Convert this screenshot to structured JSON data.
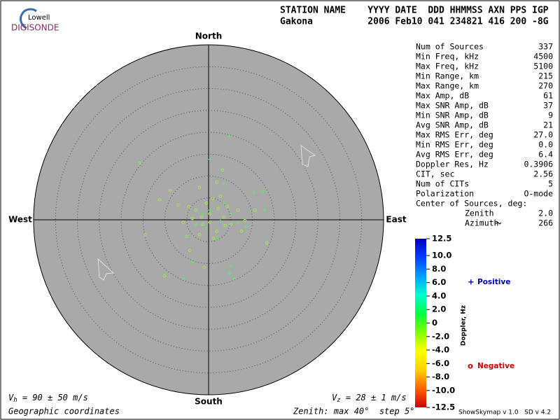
{
  "header": {
    "line1": "STATION NAME    YYYY DATE  DDD HHMMSS AXN PPS IGP",
    "line2": "Gakona          2006 Feb10 041 234821 416 200 -8G"
  },
  "logo": {
    "top": "Lowell",
    "bottom": "DIGISONDE"
  },
  "stats": {
    "rows": [
      {
        "label": "Num of Sources",
        "value": "337"
      },
      {
        "label": "Min Freq, kHz",
        "value": "4500"
      },
      {
        "label": "Max Freq, kHz",
        "value": "5100"
      },
      {
        "label": "Min Range, km",
        "value": "215"
      },
      {
        "label": "Max Range, km",
        "value": "270"
      },
      {
        "label": "Max Amp, dB",
        "value": "61"
      },
      {
        "label": "Max SNR Amp, dB",
        "value": "37"
      },
      {
        "label": "Min SNR Amp, dB",
        "value": "9"
      },
      {
        "label": "Avg SNR Amp, dB",
        "value": "21"
      },
      {
        "label": "Max RMS Err, deg",
        "value": "27.0"
      },
      {
        "label": "Min RMS Err, deg",
        "value": "0.0"
      },
      {
        "label": "Avg RMS Err, deg",
        "value": "6.4"
      },
      {
        "label": "Doppler Res, Hz",
        "value": "0.3906"
      },
      {
        "label": "CIT, sec",
        "value": "2.56"
      },
      {
        "label": "Num of CITs",
        "value": "5"
      },
      {
        "label": "Polarization",
        "value": "O-mode"
      }
    ],
    "center_title": "Center of Sources, deg:",
    "center_rows": [
      {
        "label": "Zenith",
        "value": "2.0"
      },
      {
        "label": "Azimuth",
        "value": "266"
      }
    ]
  },
  "footer": {
    "vh": [
      "V",
      "h",
      " = 90 ± 50 m/s"
    ],
    "vz": [
      "V",
      "z",
      " = 28 ± 1 m/s"
    ],
    "coords": "Geographic coordinates",
    "zenith": "Zenith: max 40°  step 5°",
    "version": "ShowSkymap v 1.0   SD v 4.2"
  },
  "chart_data": {
    "type": "scatter",
    "directions": {
      "north": "North",
      "south": "South",
      "east": "East",
      "west": "West"
    },
    "xlim": [
      -40,
      40
    ],
    "ylim": [
      -40,
      40
    ],
    "rings": [
      5,
      10,
      15,
      20,
      25,
      30,
      35
    ],
    "series": [
      {
        "name": "Negative",
        "marker": "o",
        "color": "#9be84c",
        "legend_color": "#d00000",
        "x": [
          -15.7,
          -8.8,
          -11.2,
          -14.4,
          -5.0,
          -4.3,
          -10.1,
          -1.0,
          13.3,
          10.6,
          1.0,
          -2.1,
          3.2,
          1.9,
          -7.0,
          -2.9,
          0.3,
          3.5,
          5.1,
          -1.3,
          1.9,
          6.7,
          -3.7,
          -0.5,
          4.3,
          8.3,
          1.1,
          -2.1,
          -4.5,
          2.7,
          -5.8,
          7.5,
          0.3,
          2.2,
          3.8,
          -1.6
        ],
        "y": [
          13.0,
          6.7,
          4.6,
          -3.4,
          -3.8,
          -7.0,
          -12.8,
          -10.9,
          -5.3,
          2.2,
          4.8,
          7.4,
          11.4,
          8.6,
          3.4,
          2.2,
          1.4,
          0.6,
          -1.0,
          -1.0,
          -2.6,
          2.2,
          0.3,
          3.8,
          3.0,
          -0.2,
          -4.2,
          -3.4,
          3.0,
          5.4,
          -0.6,
          -2.6,
          -0.6,
          2.6,
          -1.3,
          0.6
        ]
      },
      {
        "name": "Positive",
        "marker": "+",
        "color": "#5fe86a",
        "legend_color": "#0000c0",
        "x": [
          4.8,
          0.3,
          -3.8,
          -5.8,
          5.1,
          4.8,
          5.9,
          12.5,
          10.4,
          12.8,
          3.5,
          0.3,
          2.7,
          -0.5,
          5.1,
          -2.9,
          6.7,
          1.9,
          -1.3,
          3.5,
          8.6
        ],
        "y": [
          19.2,
          13.8,
          -9.6,
          -13.4,
          -10.6,
          -12.2,
          -13.4,
          6.6,
          6.2,
          2.2,
          8.3,
          2.2,
          -0.2,
          -1.8,
          1.4,
          -1.0,
          -0.6,
          -4.2,
          1.4,
          3.8,
          -1.6
        ]
      }
    ],
    "colorbar": {
      "label": "Doppler, Hz",
      "lim": [
        -12.5,
        12.5
      ],
      "colors": [
        "#d00000",
        "#ff6000",
        "#ffd000",
        "#ffff00",
        "#80ff00",
        "#00ff40",
        "#00ffd0",
        "#00a0ff",
        "#0040ff",
        "#0000c0"
      ],
      "ticks": [
        12.5,
        {
          "value": 10,
          "label": "10.0"
        },
        {
          "value": 8,
          "label": "8.0"
        },
        {
          "value": 6,
          "label": "6.0"
        },
        {
          "value": 4,
          "label": "4.0"
        },
        {
          "value": 2,
          "label": "2.0"
        },
        0,
        {
          "value": -2,
          "label": "-2.0"
        },
        {
          "value": -4,
          "label": "-4.0"
        },
        {
          "value": -6,
          "label": "-6.0"
        },
        {
          "value": -8,
          "label": "-8.0"
        },
        {
          "value": -10,
          "label": "-10.0"
        },
        -12.5
      ]
    }
  }
}
